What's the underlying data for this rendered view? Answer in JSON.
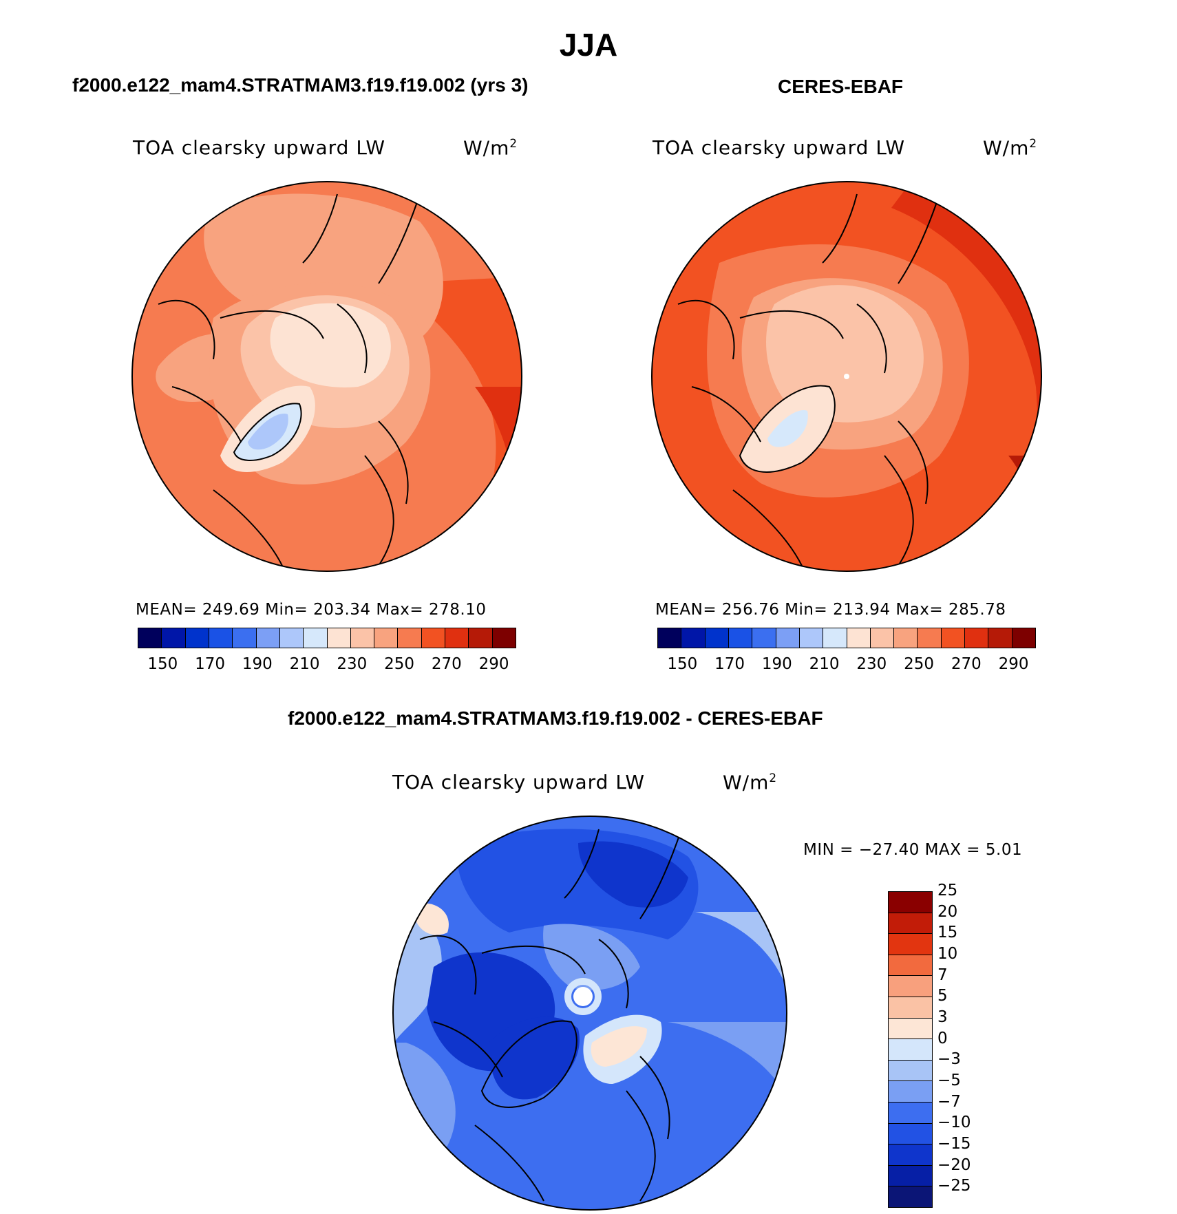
{
  "figure": {
    "title": "JJA",
    "left_panel_title": "f2000.e122_mam4.STRATMAM3.f19.f19.002 (yrs 3)",
    "right_panel_title": "CERES-EBAF",
    "diff_panel_title": "f2000.e122_mam4.STRATMAM3.f19.f19.002 - CERES-EBAF"
  },
  "panels": {
    "model": {
      "variable": "TOA clearsky upward LW",
      "units": "W/m",
      "units_exp": "2",
      "stats": "MEAN= 249.69   Min= 203.34   Max= 278.10"
    },
    "obs": {
      "variable": "TOA clearsky upward LW",
      "units": "W/m",
      "units_exp": "2",
      "stats": "MEAN= 256.76   Min= 213.94   Max= 285.78"
    },
    "diff": {
      "variable": "TOA clearsky upward LW",
      "units": "W/m",
      "units_exp": "2",
      "stats": "MIN = −27.40 MAX =    5.01"
    }
  },
  "colorbars": {
    "absolute": {
      "colors": [
        "#00005c",
        "#0016a8",
        "#0033cc",
        "#1a52e6",
        "#3b6ff0",
        "#7c9ff5",
        "#adc7fa",
        "#d6e8fb",
        "#fde3d3",
        "#fbc3a8",
        "#f8a37f",
        "#f67b50",
        "#f25222",
        "#e03010",
        "#b51a07",
        "#7d0000"
      ],
      "tick_labels": [
        "150",
        "170",
        "190",
        "210",
        "230",
        "250",
        "270",
        "290"
      ]
    },
    "difference": {
      "colors": [
        "#0b1576",
        "#061fa6",
        "#0f35cc",
        "#2252e4",
        "#3d6ef0",
        "#7a9ff3",
        "#a8c4f6",
        "#d4e6fb",
        "#fde6d6",
        "#fac2a5",
        "#f8a07d",
        "#f26a3e",
        "#e23510",
        "#c21c08",
        "#8a0000"
      ],
      "tick_labels": [
        "−25",
        "−20",
        "−15",
        "−10",
        "−7",
        "−5",
        "−3",
        "0",
        "3",
        "5",
        "7",
        "10",
        "15",
        "20",
        "25"
      ]
    }
  }
}
